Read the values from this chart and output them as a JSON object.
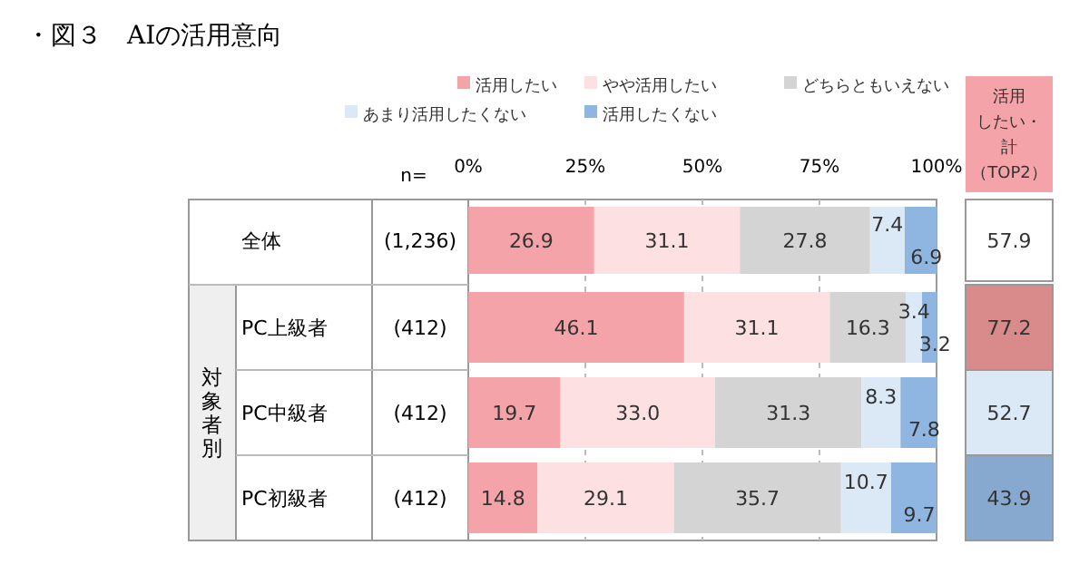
{
  "chart_data": {
    "type": "bar",
    "orientation": "horizontal",
    "stacked": true,
    "title": "・図３　AIの活用意向",
    "categories": [
      "全体",
      "PC上級者",
      "PC中級者",
      "PC初級者"
    ],
    "series": [
      {
        "name": "活用したい",
        "color": "#f4a3a8",
        "values": [
          26.9,
          46.1,
          19.7,
          14.8
        ],
        "value_labels": [
          "26.9",
          "46.1",
          "19.7",
          "14.8"
        ]
      },
      {
        "name": "やや活用したい",
        "color": "#fde0e1",
        "values": [
          31.1,
          31.1,
          33.0,
          29.1
        ],
        "value_labels": [
          "31.1",
          "31.1",
          "33.0",
          "29.1"
        ]
      },
      {
        "name": "どちらともいえない",
        "color": "#d4d4d4",
        "values": [
          27.8,
          16.3,
          31.3,
          35.7
        ],
        "value_labels": [
          "27.8",
          "16.3",
          "31.3",
          "35.7"
        ]
      },
      {
        "name": "あまり活用したくない",
        "color": "#dbe8f5",
        "values": [
          7.4,
          3.4,
          8.3,
          10.7
        ],
        "value_labels": [
          "7.4",
          "3.4",
          "8.3",
          "10.7"
        ]
      },
      {
        "name": "活用したくない",
        "color": "#8fb6e0",
        "values": [
          6.9,
          3.2,
          7.8,
          9.7
        ],
        "value_labels": [
          "6.9",
          "3.2",
          "7.8",
          "9.7"
        ]
      }
    ],
    "xlim": [
      0,
      100
    ],
    "xticks": [
      {
        "value": 0,
        "label": "0%"
      },
      {
        "value": 25,
        "label": "25%"
      },
      {
        "value": 50,
        "label": "50%"
      },
      {
        "value": 75,
        "label": "75%"
      },
      {
        "value": 100,
        "label": "100%"
      }
    ],
    "grid": "x",
    "legend": "top",
    "annotations": [
      "n=",
      "対象者別",
      "活用したい・計（TOP2）",
      "(1,236)",
      "(412)",
      "(412)",
      "(412)",
      "57.9",
      "77.2",
      "52.7",
      "43.9"
    ]
  }
}
